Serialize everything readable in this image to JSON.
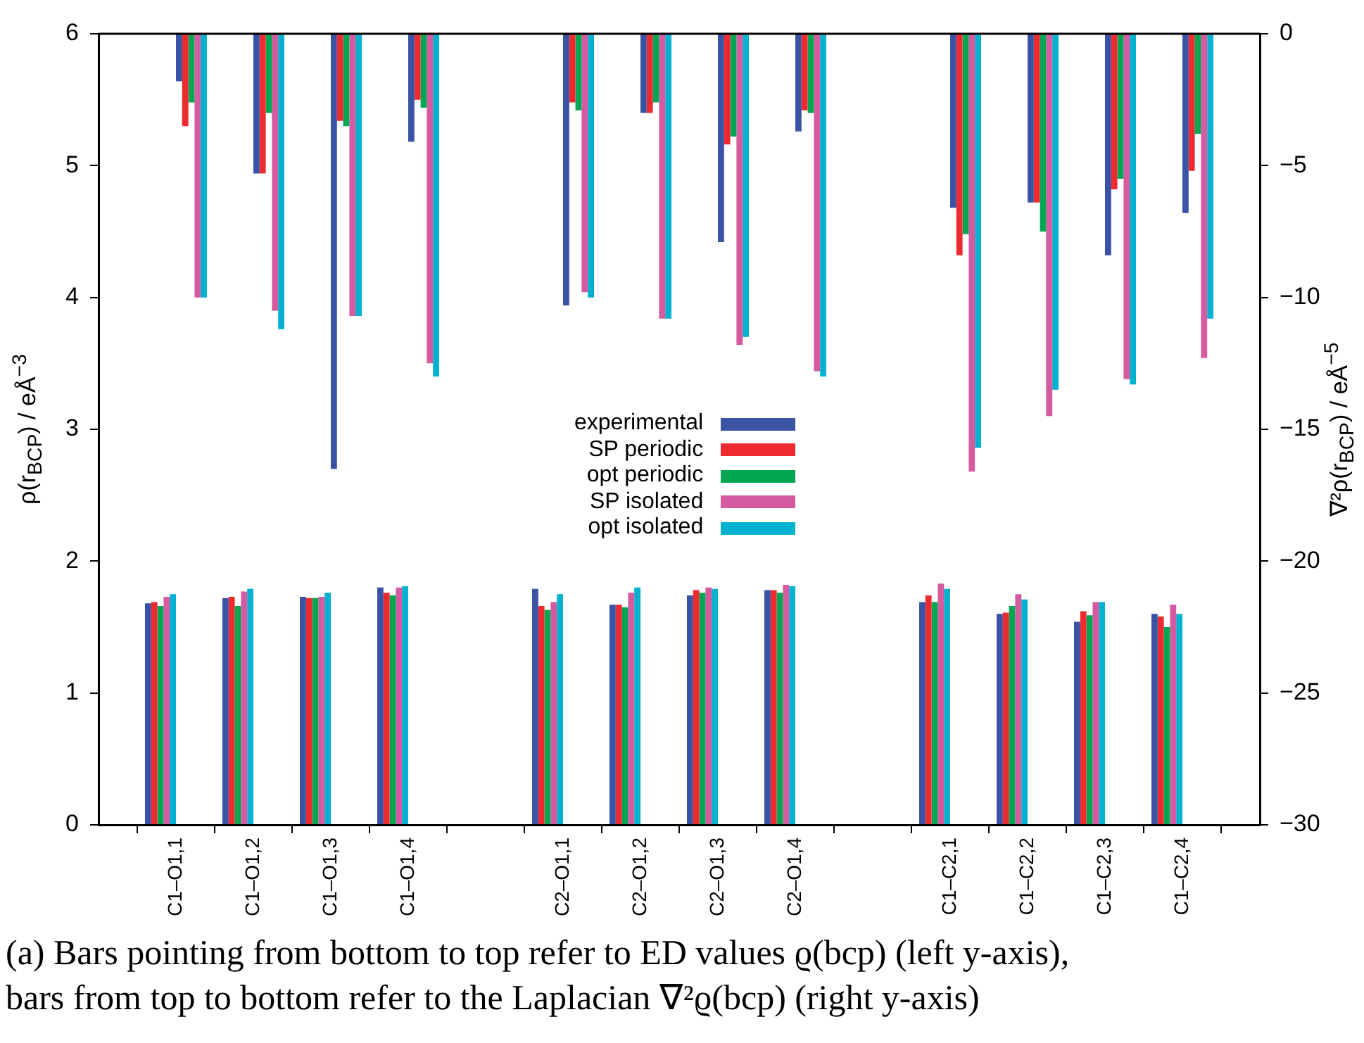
{
  "chart_data": {
    "type": "bar",
    "categories": [
      null,
      "C1–O1,1",
      "C1–O1,2",
      "C1–O1,3",
      "C1–O1,4",
      null,
      "C2–O1,1",
      "C2–O1,2",
      "C2–O1,3",
      "C2–O1,4",
      null,
      "C1–C2,1",
      "C1–C2,2",
      "C1–C2,3",
      "C1–C2,4",
      null
    ],
    "series": [
      {
        "name": "experimental",
        "color": "#3a53a4",
        "values": [
          null,
          1.68,
          1.72,
          1.73,
          1.8,
          null,
          1.79,
          1.67,
          1.74,
          1.78,
          null,
          1.69,
          1.6,
          1.54,
          1.6,
          null
        ]
      },
      {
        "name": "SP periodic",
        "color": "#ed2a2f",
        "values": [
          null,
          1.69,
          1.73,
          1.72,
          1.76,
          null,
          1.66,
          1.67,
          1.78,
          1.78,
          null,
          1.74,
          1.61,
          1.62,
          1.58,
          null
        ]
      },
      {
        "name": "opt periodic",
        "color": "#00a651",
        "values": [
          null,
          1.66,
          1.66,
          1.72,
          1.74,
          null,
          1.63,
          1.65,
          1.76,
          1.76,
          null,
          1.69,
          1.66,
          1.59,
          1.5,
          null
        ]
      },
      {
        "name": "SP isolated",
        "color": "#d65aa0",
        "values": [
          null,
          1.73,
          1.77,
          1.73,
          1.8,
          null,
          1.69,
          1.76,
          1.8,
          1.82,
          null,
          1.83,
          1.75,
          1.69,
          1.67,
          null
        ]
      },
      {
        "name": "opt isolated",
        "color": "#00b2d0",
        "values": [
          null,
          1.75,
          1.79,
          1.76,
          1.81,
          null,
          1.75,
          1.8,
          1.79,
          1.81,
          null,
          1.79,
          1.71,
          1.69,
          1.6,
          null
        ]
      },
      {
        "axis": "y2",
        "color": "#3a53a4",
        "values": [
          null,
          -1.8,
          -5.3,
          -16.5,
          -4.1,
          null,
          -10.3,
          -3.0,
          -7.9,
          -3.7,
          null,
          -6.6,
          -6.4,
          -8.4,
          -6.8,
          null
        ]
      },
      {
        "axis": "y2",
        "color": "#ed2a2f",
        "values": [
          null,
          -3.5,
          -5.3,
          -3.3,
          -2.5,
          null,
          -2.6,
          -3.0,
          -4.2,
          -2.9,
          null,
          -8.4,
          -6.4,
          -5.9,
          -5.2,
          null
        ]
      },
      {
        "axis": "y2",
        "color": "#00a651",
        "values": [
          null,
          -2.6,
          -3.0,
          -3.5,
          -2.8,
          null,
          -2.9,
          -2.6,
          -3.9,
          -3.0,
          null,
          -7.6,
          -7.5,
          -5.5,
          -3.8,
          null
        ]
      },
      {
        "axis": "y2",
        "color": "#d65aa0",
        "values": [
          null,
          -10.0,
          -10.5,
          -10.7,
          -12.5,
          null,
          -9.8,
          -10.8,
          -11.8,
          -12.8,
          null,
          -16.6,
          -14.5,
          -13.1,
          -12.3,
          null
        ]
      },
      {
        "axis": "y2",
        "color": "#00b2d0",
        "values": [
          null,
          -10.0,
          -11.2,
          -10.7,
          -13.0,
          null,
          -10.0,
          -10.8,
          -11.5,
          -13.0,
          null,
          -15.7,
          -13.5,
          -13.3,
          -10.8,
          null
        ]
      }
    ],
    "ylabel": "ρ(r$_{BCP}$) / eÅ$^{−3}$",
    "y2label": "∇²ρ(r$_{BCP}$) / eÅ$^{−5}$",
    "ylim": [
      0,
      6
    ],
    "yticks": [
      0,
      1,
      2,
      3,
      4,
      5,
      6
    ],
    "y2lim": [
      -30,
      0
    ],
    "y2ticks": [
      {
        "value": -30,
        "label": "−30"
      },
      {
        "value": -25,
        "label": "−25"
      },
      {
        "value": -20,
        "label": "−20"
      },
      {
        "value": -15,
        "label": "−15"
      },
      {
        "value": -10,
        "label": "−10"
      },
      {
        "value": -5,
        "label": "−5"
      },
      0
    ],
    "grid": false,
    "legend": "center",
    "annotations": [
      "(a) Bars pointing from bottom to top refer to ED values ϱ(bcp) (left y-axis),\nbars from top to bottom refer to the Laplacian ∇²ϱ(bcp) (right y-axis)"
    ]
  }
}
